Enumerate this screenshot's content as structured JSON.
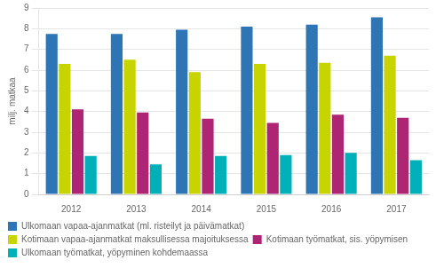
{
  "chart_data": {
    "type": "bar",
    "categories": [
      "2012",
      "2013",
      "2014",
      "2015",
      "2016",
      "2017"
    ],
    "series": [
      {
        "name": "Ulkomaan vapaa-ajanmatkat (ml. risteilyt ja päivämatkat)",
        "color": "#2e75b6",
        "values": [
          7.75,
          7.75,
          7.95,
          8.1,
          8.2,
          8.55
        ]
      },
      {
        "name": "Kotimaan vapaa-ajanmatkat maksullisessa majoituksessa",
        "color": "#c8d400",
        "values": [
          6.3,
          6.5,
          5.9,
          6.3,
          6.35,
          6.7
        ]
      },
      {
        "name": "Kotimaan työmatkat, sis. yöpymisen",
        "color": "#ae2573",
        "values": [
          4.1,
          3.95,
          3.65,
          3.45,
          3.85,
          3.7
        ]
      },
      {
        "name": "Ulkomaan työmatkat, yöpyminen kohdemaassa",
        "color": "#00b0b9",
        "values": [
          1.85,
          1.45,
          1.85,
          1.9,
          2.0,
          1.65
        ]
      }
    ],
    "ylabel": "milj. matkaa",
    "ylim": [
      0,
      9
    ],
    "yticks": [
      0,
      1,
      2,
      3,
      4,
      5,
      6,
      7,
      8,
      9
    ],
    "grid": true,
    "legend": "bottom"
  }
}
